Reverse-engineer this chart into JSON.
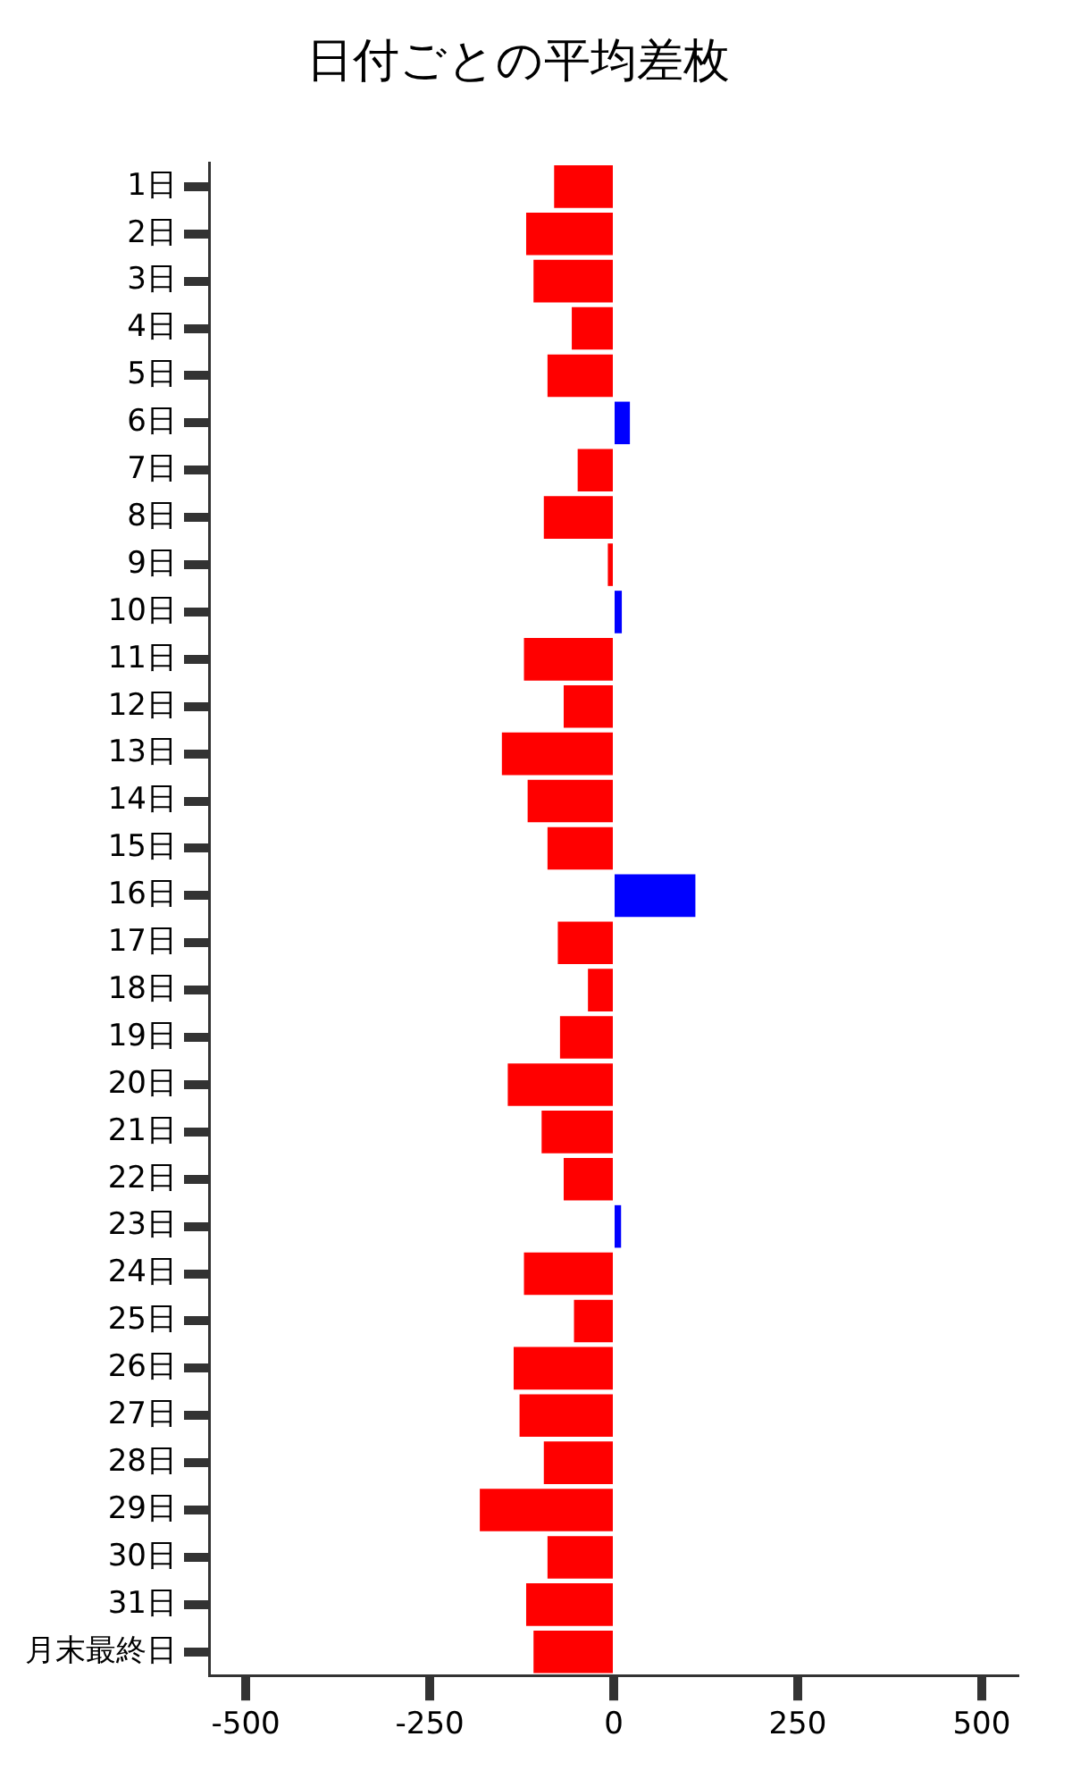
{
  "chart_data": {
    "type": "bar",
    "orientation": "horizontal",
    "title": "日付ごとの平均差枚",
    "categories": [
      "1日",
      "2日",
      "3日",
      "4日",
      "5日",
      "6日",
      "7日",
      "8日",
      "9日",
      "10日",
      "11日",
      "12日",
      "13日",
      "14日",
      "15日",
      "16日",
      "17日",
      "18日",
      "19日",
      "20日",
      "21日",
      "22日",
      "23日",
      "24日",
      "25日",
      "26日",
      "27日",
      "28日",
      "29日",
      "30日",
      "31日",
      "月末最終日"
    ],
    "values": [
      -81,
      -119,
      -109,
      -57,
      -90,
      22,
      -49,
      -95,
      -8,
      11,
      -122,
      -68,
      -152,
      -117,
      -90,
      111,
      -76,
      -35,
      -73,
      -144,
      -98,
      -68,
      10,
      -122,
      -54,
      -136,
      -128,
      -95,
      -182,
      -90,
      -119,
      -109
    ],
    "colors": [
      "#ff0000",
      "#ff0000",
      "#ff0000",
      "#ff0000",
      "#ff0000",
      "#0000ff",
      "#ff0000",
      "#ff0000",
      "#ff0000",
      "#0000ff",
      "#ff0000",
      "#ff0000",
      "#ff0000",
      "#ff0000",
      "#ff0000",
      "#0000ff",
      "#ff0000",
      "#ff0000",
      "#ff0000",
      "#ff0000",
      "#ff0000",
      "#ff0000",
      "#0000ff",
      "#ff0000",
      "#ff0000",
      "#ff0000",
      "#ff0000",
      "#ff0000",
      "#ff0000",
      "#ff0000",
      "#ff0000",
      "#ff0000"
    ],
    "xlim": [
      -550,
      550
    ],
    "xticks": [
      -500,
      -250,
      0,
      250,
      500
    ],
    "grid": false,
    "legend": false
  }
}
